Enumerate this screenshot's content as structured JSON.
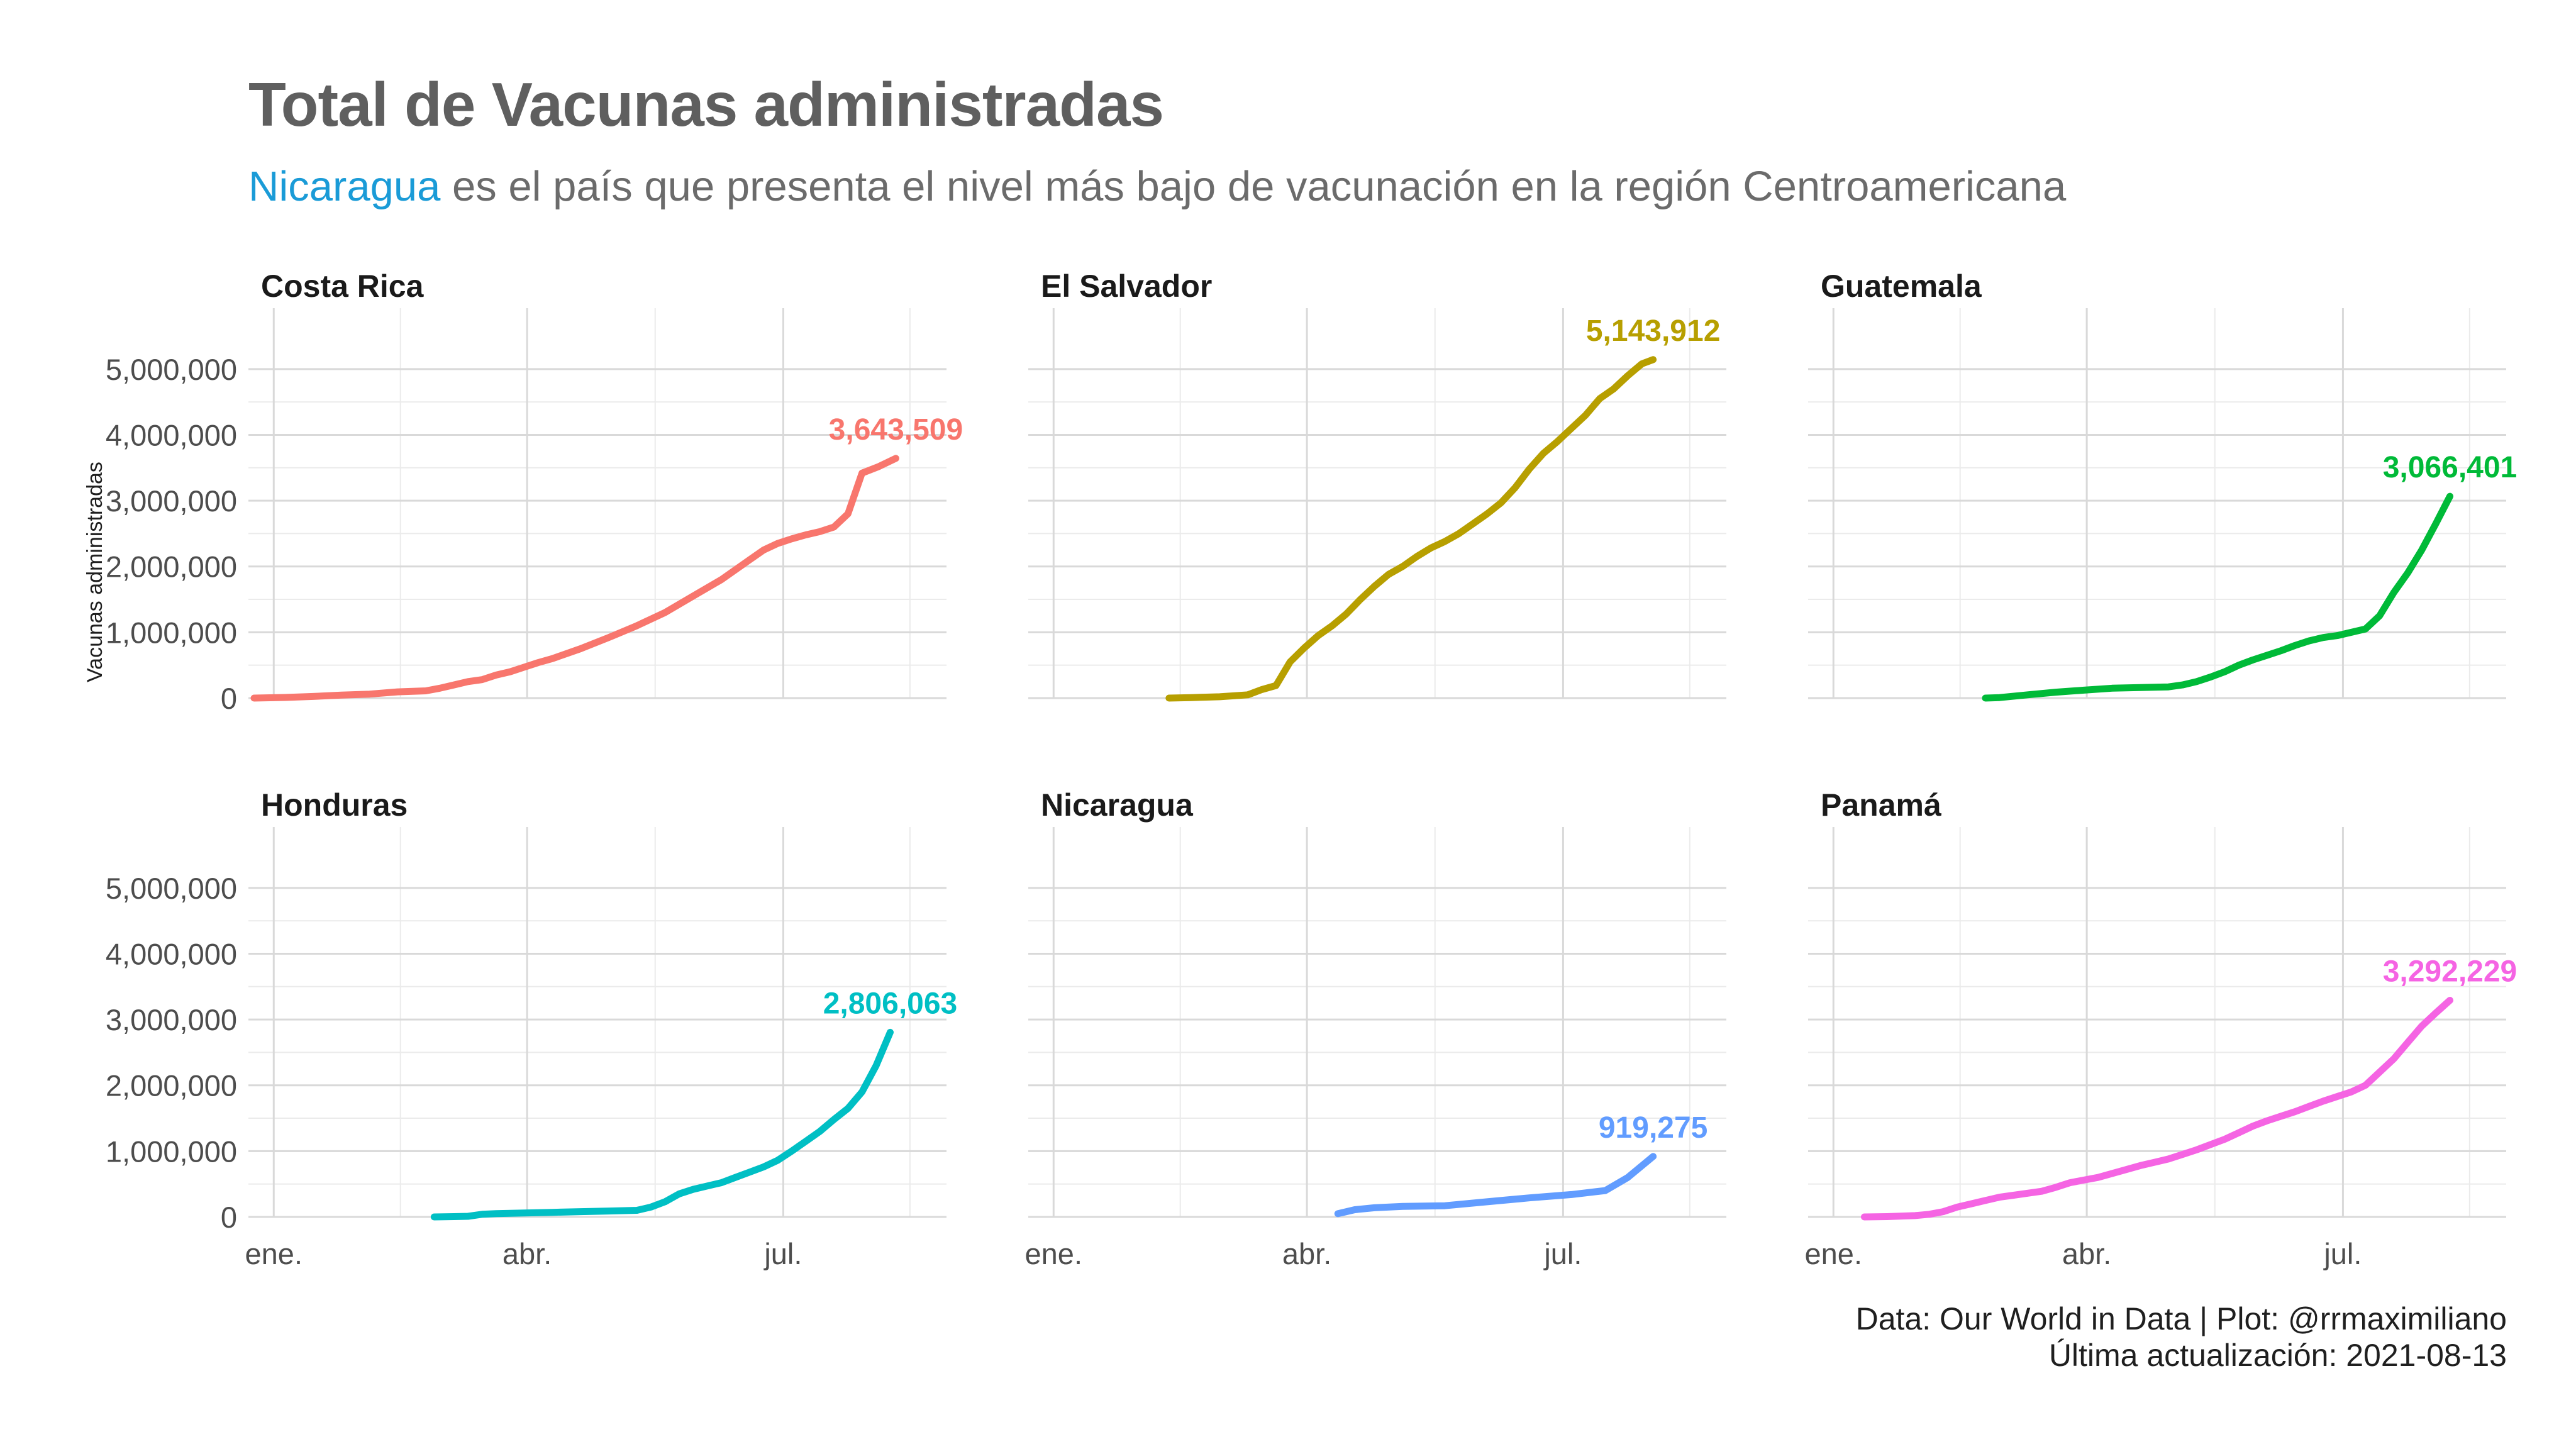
{
  "title": "Total de Vacunas administradas",
  "subtitle": {
    "highlight": "Nicaragua",
    "highlight_color": "#1a9bd7",
    "rest": " es el país que presenta el nivel más bajo de vacunación en la región Centroamericana"
  },
  "caption": {
    "line1": "Data: Our World in Data | Plot: @rrmaximiliano",
    "line2": "Última actualización: 2021-08-13"
  },
  "chart_data": {
    "type": "line",
    "layout": "facet 2x3",
    "ylabel": "Vacunas administradas",
    "ylim": [
      0,
      5400000
    ],
    "y_ticks": [
      0,
      1000000,
      2000000,
      3000000,
      4000000,
      5000000
    ],
    "y_tick_labels": [
      "0",
      "1,000,000",
      "2,000,000",
      "3,000,000",
      "4,000,000",
      "5,000,000"
    ],
    "x_unit": "day of year 2021",
    "xlim": [
      -8,
      240
    ],
    "x_ticks": [
      1,
      91,
      182
    ],
    "x_tick_labels": [
      "ene.",
      "abr.",
      "jul."
    ],
    "grid": true,
    "legend": "none",
    "panels": [
      {
        "name": "Costa Rica",
        "color": "#f8766d",
        "label": "3,643,509",
        "x": [
          -6,
          5,
          15,
          25,
          35,
          45,
          55,
          60,
          65,
          70,
          75,
          80,
          85,
          90,
          95,
          100,
          110,
          120,
          130,
          140,
          150,
          160,
          165,
          170,
          175,
          180,
          185,
          190,
          195,
          200,
          205,
          210,
          216,
          222
        ],
        "y": [
          0,
          10000,
          25000,
          45000,
          60000,
          95000,
          110000,
          150000,
          200000,
          250000,
          280000,
          350000,
          400000,
          470000,
          540000,
          600000,
          750000,
          920000,
          1100000,
          1300000,
          1550000,
          1800000,
          1950000,
          2100000,
          2250000,
          2350000,
          2420000,
          2480000,
          2530000,
          2600000,
          2800000,
          3420000,
          3520000,
          3643509
        ]
      },
      {
        "name": "El Salvador",
        "color": "#b79f00",
        "label": "5,143,912",
        "x": [
          42,
          50,
          60,
          70,
          75,
          80,
          85,
          90,
          95,
          100,
          105,
          110,
          115,
          120,
          125,
          130,
          135,
          140,
          145,
          150,
          155,
          160,
          165,
          170,
          175,
          180,
          185,
          190,
          195,
          200,
          205,
          210,
          214
        ],
        "y": [
          0,
          8000,
          20000,
          50000,
          130000,
          190000,
          550000,
          760000,
          950000,
          1100000,
          1280000,
          1500000,
          1700000,
          1880000,
          2000000,
          2150000,
          2280000,
          2380000,
          2500000,
          2650000,
          2800000,
          2970000,
          3200000,
          3480000,
          3720000,
          3900000,
          4100000,
          4300000,
          4550000,
          4700000,
          4900000,
          5080000,
          5143912
        ]
      },
      {
        "name": "Guatemala",
        "color": "#00ba38",
        "label": "3,066,401",
        "x": [
          55,
          60,
          70,
          80,
          90,
          100,
          110,
          120,
          125,
          130,
          135,
          140,
          145,
          150,
          155,
          160,
          165,
          170,
          175,
          180,
          185,
          190,
          195,
          200,
          205,
          210,
          215,
          220
        ],
        "y": [
          0,
          8000,
          50000,
          90000,
          120000,
          150000,
          160000,
          170000,
          200000,
          250000,
          320000,
          400000,
          500000,
          580000,
          650000,
          720000,
          800000,
          870000,
          920000,
          950000,
          1000000,
          1050000,
          1250000,
          1600000,
          1900000,
          2250000,
          2650000,
          3066401
        ]
      },
      {
        "name": "Honduras",
        "color": "#00bfc4",
        "label": "2,806,063",
        "x": [
          58,
          65,
          70,
          75,
          80,
          90,
          100,
          110,
          120,
          130,
          135,
          140,
          145,
          150,
          155,
          160,
          165,
          170,
          175,
          180,
          185,
          190,
          195,
          200,
          205,
          210,
          215,
          220
        ],
        "y": [
          0,
          5000,
          10000,
          40000,
          50000,
          60000,
          70000,
          80000,
          90000,
          100000,
          150000,
          230000,
          350000,
          420000,
          470000,
          520000,
          600000,
          680000,
          760000,
          860000,
          1000000,
          1150000,
          1300000,
          1480000,
          1650000,
          1900000,
          2300000,
          2806063
        ]
      },
      {
        "name": "Nicaragua",
        "color": "#619cff",
        "label": "919,275",
        "x": [
          102,
          108,
          115,
          125,
          140,
          155,
          170,
          185,
          197,
          205,
          214
        ],
        "y": [
          50000,
          110000,
          140000,
          160000,
          170000,
          230000,
          290000,
          340000,
          400000,
          600000,
          919275
        ]
      },
      {
        "name": "Panamá",
        "color": "#f564e3",
        "label": "3,292,229",
        "x": [
          12,
          20,
          30,
          35,
          40,
          45,
          50,
          55,
          60,
          65,
          70,
          75,
          80,
          85,
          90,
          95,
          100,
          105,
          110,
          115,
          120,
          125,
          130,
          135,
          140,
          145,
          150,
          155,
          160,
          165,
          170,
          175,
          180,
          185,
          190,
          195,
          200,
          205,
          210,
          215,
          220
        ],
        "y": [
          0,
          5000,
          20000,
          40000,
          80000,
          150000,
          200000,
          250000,
          300000,
          330000,
          360000,
          390000,
          450000,
          520000,
          560000,
          600000,
          660000,
          720000,
          780000,
          830000,
          880000,
          950000,
          1020000,
          1100000,
          1180000,
          1280000,
          1380000,
          1460000,
          1530000,
          1600000,
          1680000,
          1760000,
          1830000,
          1900000,
          2000000,
          2200000,
          2400000,
          2650000,
          2900000,
          3100000,
          3292229
        ]
      }
    ]
  }
}
